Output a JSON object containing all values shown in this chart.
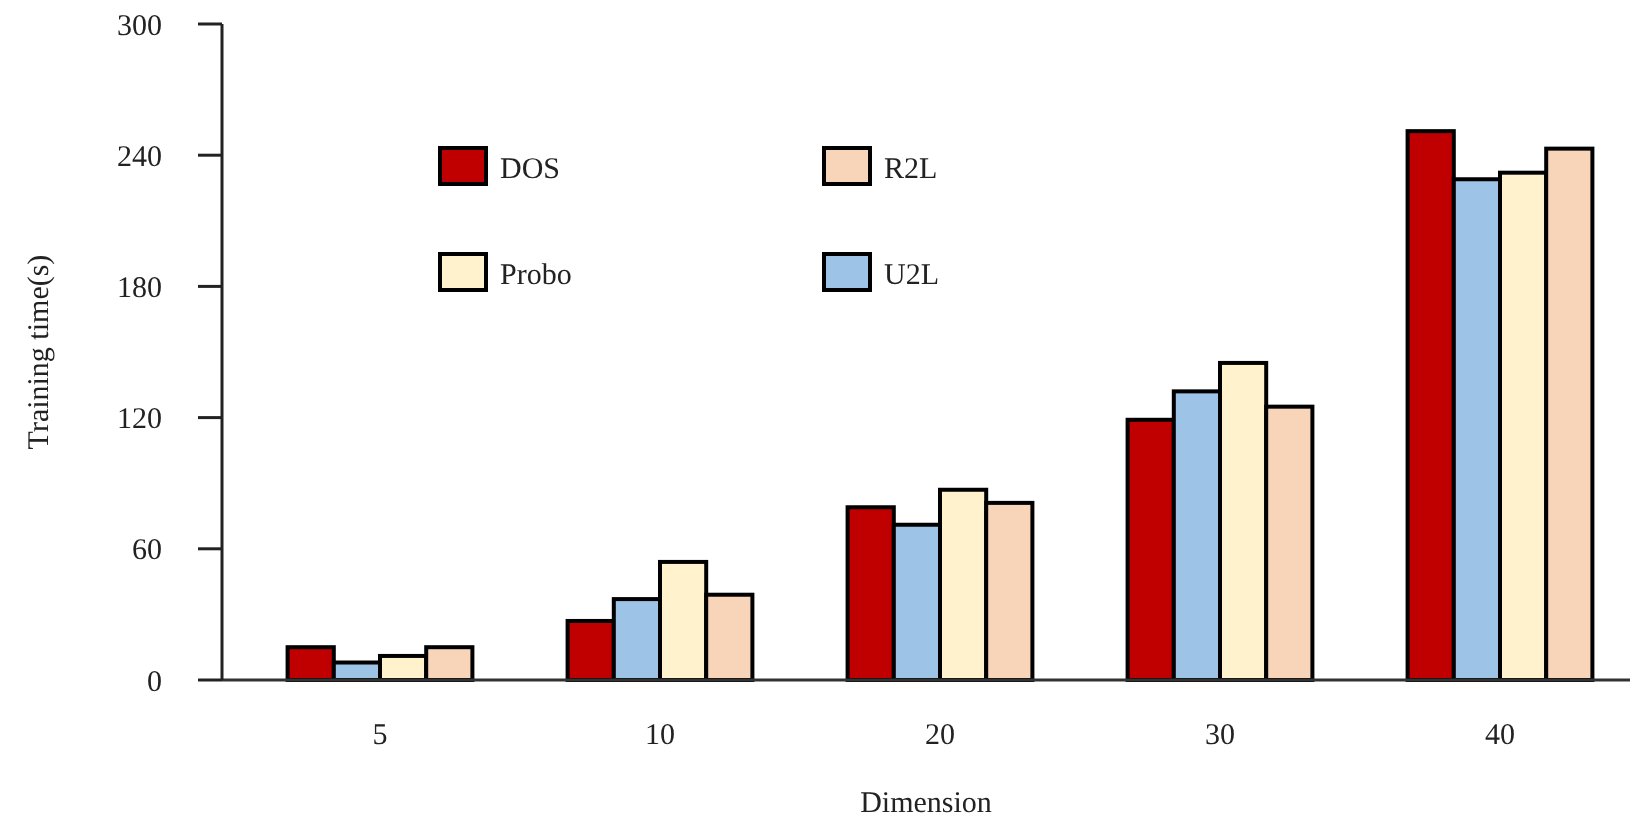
{
  "chart_data": {
    "type": "bar",
    "xlabel": "Dimension",
    "ylabel": "Training time(s)",
    "categories": [
      "5",
      "10",
      "20",
      "30",
      "40"
    ],
    "series": [
      {
        "name": "DOS",
        "color": "#c00000",
        "values": [
          15,
          27,
          79,
          119,
          251
        ]
      },
      {
        "name": "U2L",
        "color": "#9dc3e6",
        "values": [
          8,
          37,
          71,
          132,
          229
        ]
      },
      {
        "name": "Probo",
        "color": "#fff2cc",
        "values": [
          11,
          54,
          87,
          145,
          232
        ]
      },
      {
        "name": "R2L",
        "color": "#f8d5b8",
        "values": [
          15,
          39,
          81,
          125,
          243
        ]
      }
    ],
    "ylim": [
      0,
      300
    ],
    "yticks": [
      0,
      60,
      120,
      180,
      240,
      300
    ],
    "grid": false,
    "legend": "top left"
  }
}
